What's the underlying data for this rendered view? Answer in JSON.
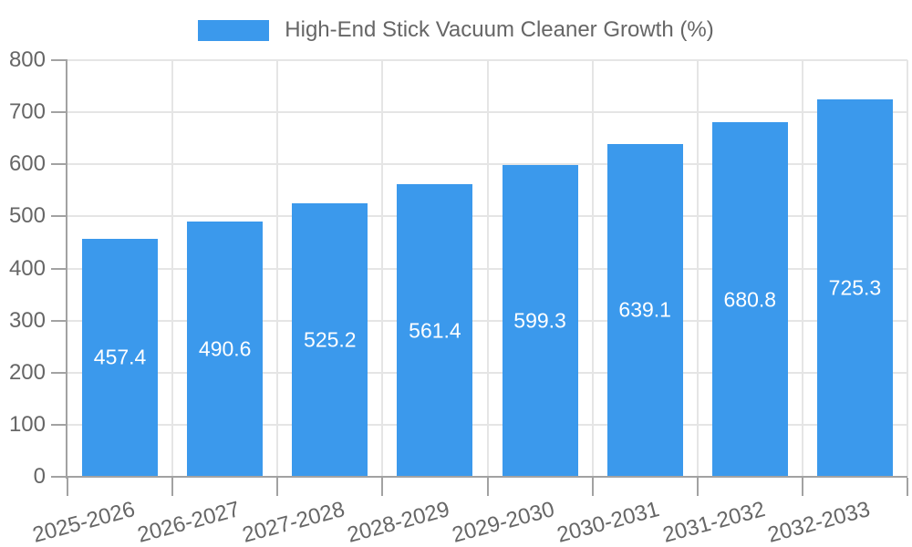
{
  "legend": {
    "label": "High-End Stick Vacuum Cleaner Growth (%)"
  },
  "chart_data": {
    "type": "bar",
    "title": "",
    "series_name": "High-End Stick Vacuum Cleaner Growth (%)",
    "categories": [
      "2025-2026",
      "2026-2027",
      "2027-2028",
      "2028-2029",
      "2029-2030",
      "2030-2031",
      "2031-2032",
      "2032-2033"
    ],
    "values": [
      457.4,
      490.6,
      525.2,
      561.4,
      599.3,
      639.1,
      680.8,
      725.3
    ],
    "value_labels": [
      "457.4",
      "490.6",
      "525.2",
      "561.4",
      "599.3",
      "639.1",
      "680.8",
      "725.3"
    ],
    "xlabel": "",
    "ylabel": "",
    "ylim": [
      0,
      800
    ],
    "yticks": [
      0,
      100,
      200,
      300,
      400,
      500,
      600,
      700,
      800
    ],
    "grid": true,
    "legend_position": "top",
    "x_label_rotation_deg": -15,
    "colors": {
      "bar": "#3B99EC",
      "grid": "#e5e5e5",
      "axis": "#a2a2a2",
      "tick_text": "#666666",
      "legend_text": "#666666",
      "value_text": "#ffffff",
      "background": "#ffffff"
    }
  }
}
